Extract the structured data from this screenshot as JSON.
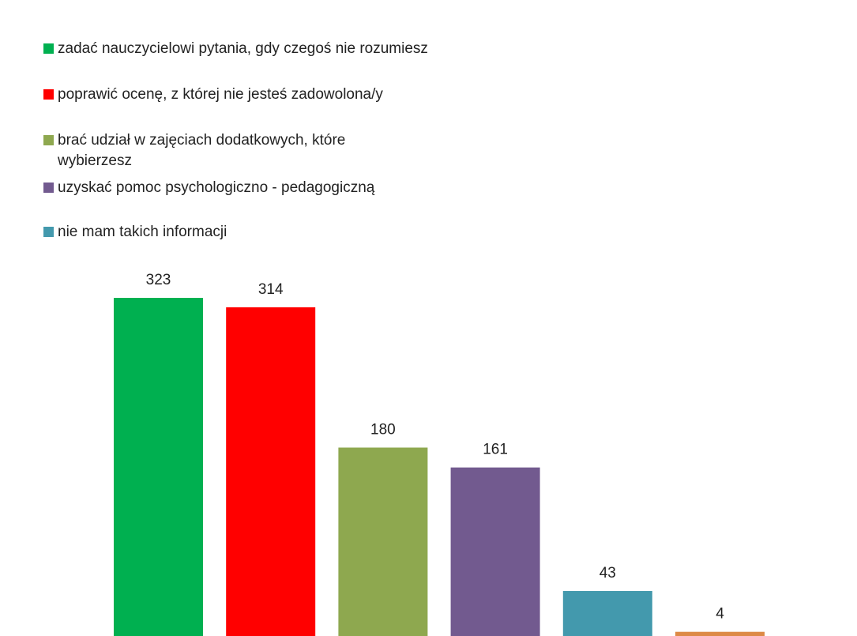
{
  "chart_data": {
    "type": "bar",
    "categories": [
      "zadać nauczycielowi pytania, gdy czegoś nie rozumiesz",
      "poprawić ocenę, z której nie jesteś zadowolona/y",
      "brać udział w zajęciach dodatkowych, które wybierzesz",
      "uzyskać pomoc psychologiczno - pedagogiczną",
      "nie mam takich informacji",
      null
    ],
    "values": [
      323,
      314,
      180,
      161,
      43,
      4
    ],
    "colors": [
      "#00b050",
      "#ff0000",
      "#8ea84f",
      "#725a8f",
      "#4399ad",
      "#dd8a46"
    ]
  }
}
